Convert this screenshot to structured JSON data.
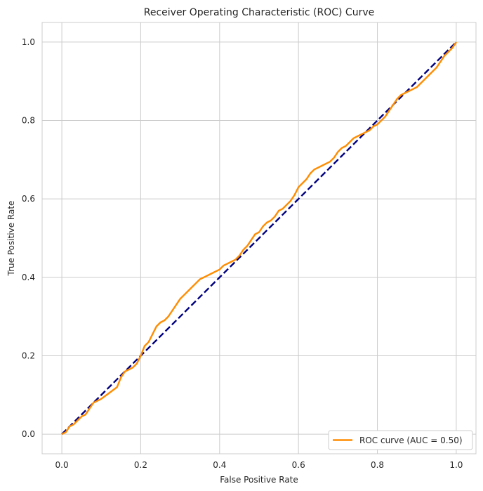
{
  "chart_data": {
    "type": "line",
    "title": "Receiver Operating Characteristic (ROC) Curve",
    "xlabel": "False Positive Rate",
    "ylabel": "True Positive Rate",
    "xlim": [
      -0.05,
      1.05
    ],
    "ylim": [
      -0.05,
      1.05
    ],
    "x_ticks": [
      0.0,
      0.2,
      0.4,
      0.6,
      0.8,
      1.0
    ],
    "y_ticks": [
      0.0,
      0.2,
      0.4,
      0.6,
      0.8,
      1.0
    ],
    "x_tick_labels": [
      "0.0",
      "0.2",
      "0.4",
      "0.6",
      "0.8",
      "1.0"
    ],
    "y_tick_labels": [
      "0.0",
      "0.2",
      "0.4",
      "0.6",
      "0.8",
      "1.0"
    ],
    "grid": true,
    "legend_position": "lower-right",
    "series": [
      {
        "name": "ROC curve (AUC = 0.50)",
        "color": "#ff8c00",
        "style": "solid",
        "x": [
          0.0,
          0.01,
          0.02,
          0.03,
          0.04,
          0.05,
          0.06,
          0.07,
          0.08,
          0.09,
          0.1,
          0.12,
          0.14,
          0.15,
          0.16,
          0.17,
          0.18,
          0.19,
          0.2,
          0.21,
          0.22,
          0.23,
          0.24,
          0.25,
          0.26,
          0.27,
          0.28,
          0.29,
          0.3,
          0.31,
          0.32,
          0.33,
          0.34,
          0.35,
          0.36,
          0.37,
          0.38,
          0.39,
          0.4,
          0.41,
          0.42,
          0.43,
          0.44,
          0.45,
          0.46,
          0.47,
          0.48,
          0.49,
          0.5,
          0.51,
          0.52,
          0.53,
          0.54,
          0.55,
          0.56,
          0.57,
          0.58,
          0.59,
          0.6,
          0.61,
          0.62,
          0.63,
          0.64,
          0.65,
          0.66,
          0.67,
          0.68,
          0.69,
          0.7,
          0.71,
          0.72,
          0.73,
          0.74,
          0.75,
          0.76,
          0.77,
          0.78,
          0.79,
          0.8,
          0.81,
          0.82,
          0.83,
          0.84,
          0.85,
          0.86,
          0.87,
          0.88,
          0.89,
          0.9,
          0.91,
          0.92,
          0.93,
          0.94,
          0.95,
          0.96,
          0.97,
          0.98,
          0.99,
          1.0
        ],
        "y": [
          0.0,
          0.005,
          0.02,
          0.025,
          0.035,
          0.045,
          0.05,
          0.065,
          0.08,
          0.085,
          0.09,
          0.105,
          0.12,
          0.145,
          0.16,
          0.165,
          0.17,
          0.18,
          0.2,
          0.225,
          0.235,
          0.255,
          0.275,
          0.285,
          0.29,
          0.3,
          0.315,
          0.33,
          0.345,
          0.355,
          0.365,
          0.375,
          0.385,
          0.395,
          0.4,
          0.405,
          0.41,
          0.415,
          0.42,
          0.43,
          0.435,
          0.44,
          0.445,
          0.455,
          0.47,
          0.48,
          0.495,
          0.51,
          0.515,
          0.53,
          0.54,
          0.545,
          0.555,
          0.57,
          0.575,
          0.585,
          0.595,
          0.61,
          0.63,
          0.64,
          0.65,
          0.665,
          0.675,
          0.68,
          0.685,
          0.69,
          0.695,
          0.705,
          0.72,
          0.73,
          0.735,
          0.745,
          0.755,
          0.76,
          0.765,
          0.77,
          0.775,
          0.785,
          0.79,
          0.8,
          0.81,
          0.825,
          0.84,
          0.855,
          0.865,
          0.87,
          0.875,
          0.88,
          0.885,
          0.895,
          0.905,
          0.915,
          0.925,
          0.935,
          0.95,
          0.965,
          0.975,
          0.985,
          1.0
        ]
      },
      {
        "name": "",
        "color": "#000080",
        "style": "dashed",
        "x": [
          0.0,
          1.0
        ],
        "y": [
          0.0,
          1.0
        ]
      }
    ]
  }
}
